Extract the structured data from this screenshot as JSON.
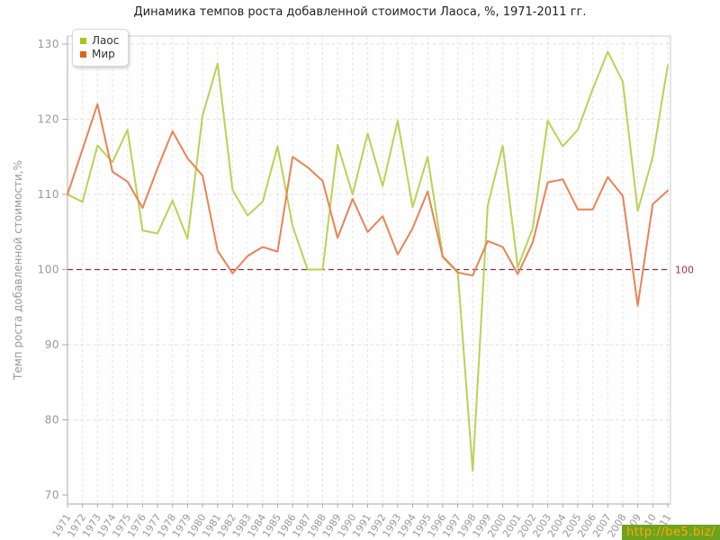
{
  "page": {
    "title": "Динамика темпов роста добавленной стоимости Лаоса, %, 1971-2011 гг."
  },
  "legend": {
    "items": [
      {
        "label": "Лаос",
        "marker_color": "#a2c81a"
      },
      {
        "label": "Мир",
        "marker_color": "#e35f1e"
      }
    ]
  },
  "watermark": {
    "text": "http://be5.biz/",
    "bg_color": "#6da31f",
    "text_color": "#ffaa00"
  },
  "chart_data": {
    "type": "line",
    "title": "Динамика темпов роста добавленной стоимости Лаоса, %, 1971-2011 гг.",
    "xlabel": "",
    "ylabel": "Темп роста добавленной стоимости,%",
    "ylim": [
      70,
      130
    ],
    "yticks": [
      70,
      80,
      90,
      100,
      110,
      120,
      130
    ],
    "grid": true,
    "legend_position": "top-left",
    "x": [
      1971,
      1972,
      1973,
      1974,
      1975,
      1976,
      1977,
      1978,
      1979,
      1980,
      1981,
      1982,
      1983,
      1984,
      1985,
      1986,
      1987,
      1988,
      1989,
      1990,
      1991,
      1992,
      1993,
      1994,
      1995,
      1996,
      1997,
      1998,
      1999,
      2000,
      2001,
      2002,
      2003,
      2004,
      2005,
      2006,
      2007,
      2008,
      2009,
      2010,
      2011
    ],
    "series": [
      {
        "name": "Лаос",
        "color": "#b8d356",
        "values": [
          110.0,
          109.0,
          116.5,
          114.3,
          118.6,
          105.2,
          104.8,
          109.2,
          104.1,
          120.5,
          127.4,
          110.6,
          107.2,
          109.0,
          116.4,
          105.8,
          100.0,
          100.0,
          116.6,
          110.0,
          118.1,
          111.1,
          119.8,
          108.3,
          115.0,
          101.8,
          99.7,
          73.2,
          108.5,
          116.5,
          100.3,
          105.5,
          119.8,
          116.4,
          118.6,
          124.0,
          129.0,
          125.0,
          107.8,
          115.0,
          127.2
        ]
      },
      {
        "name": "Мир",
        "color": "#e98355",
        "values": [
          110.0,
          116.0,
          122.0,
          113.0,
          111.7,
          108.2,
          113.5,
          118.4,
          114.8,
          112.5,
          102.5,
          99.5,
          101.8,
          103.0,
          102.4,
          115.0,
          113.6,
          111.8,
          104.2,
          109.4,
          105.0,
          107.1,
          102.0,
          105.5,
          110.4,
          101.7,
          99.6,
          99.2,
          103.8,
          103.0,
          99.4,
          103.6,
          111.6,
          112.0,
          108.0,
          108.0,
          112.3,
          109.8,
          95.2,
          108.7,
          110.5
        ]
      }
    ],
    "reference_line": {
      "y": 100,
      "label": "100",
      "color": "#8d2f3d"
    }
  }
}
